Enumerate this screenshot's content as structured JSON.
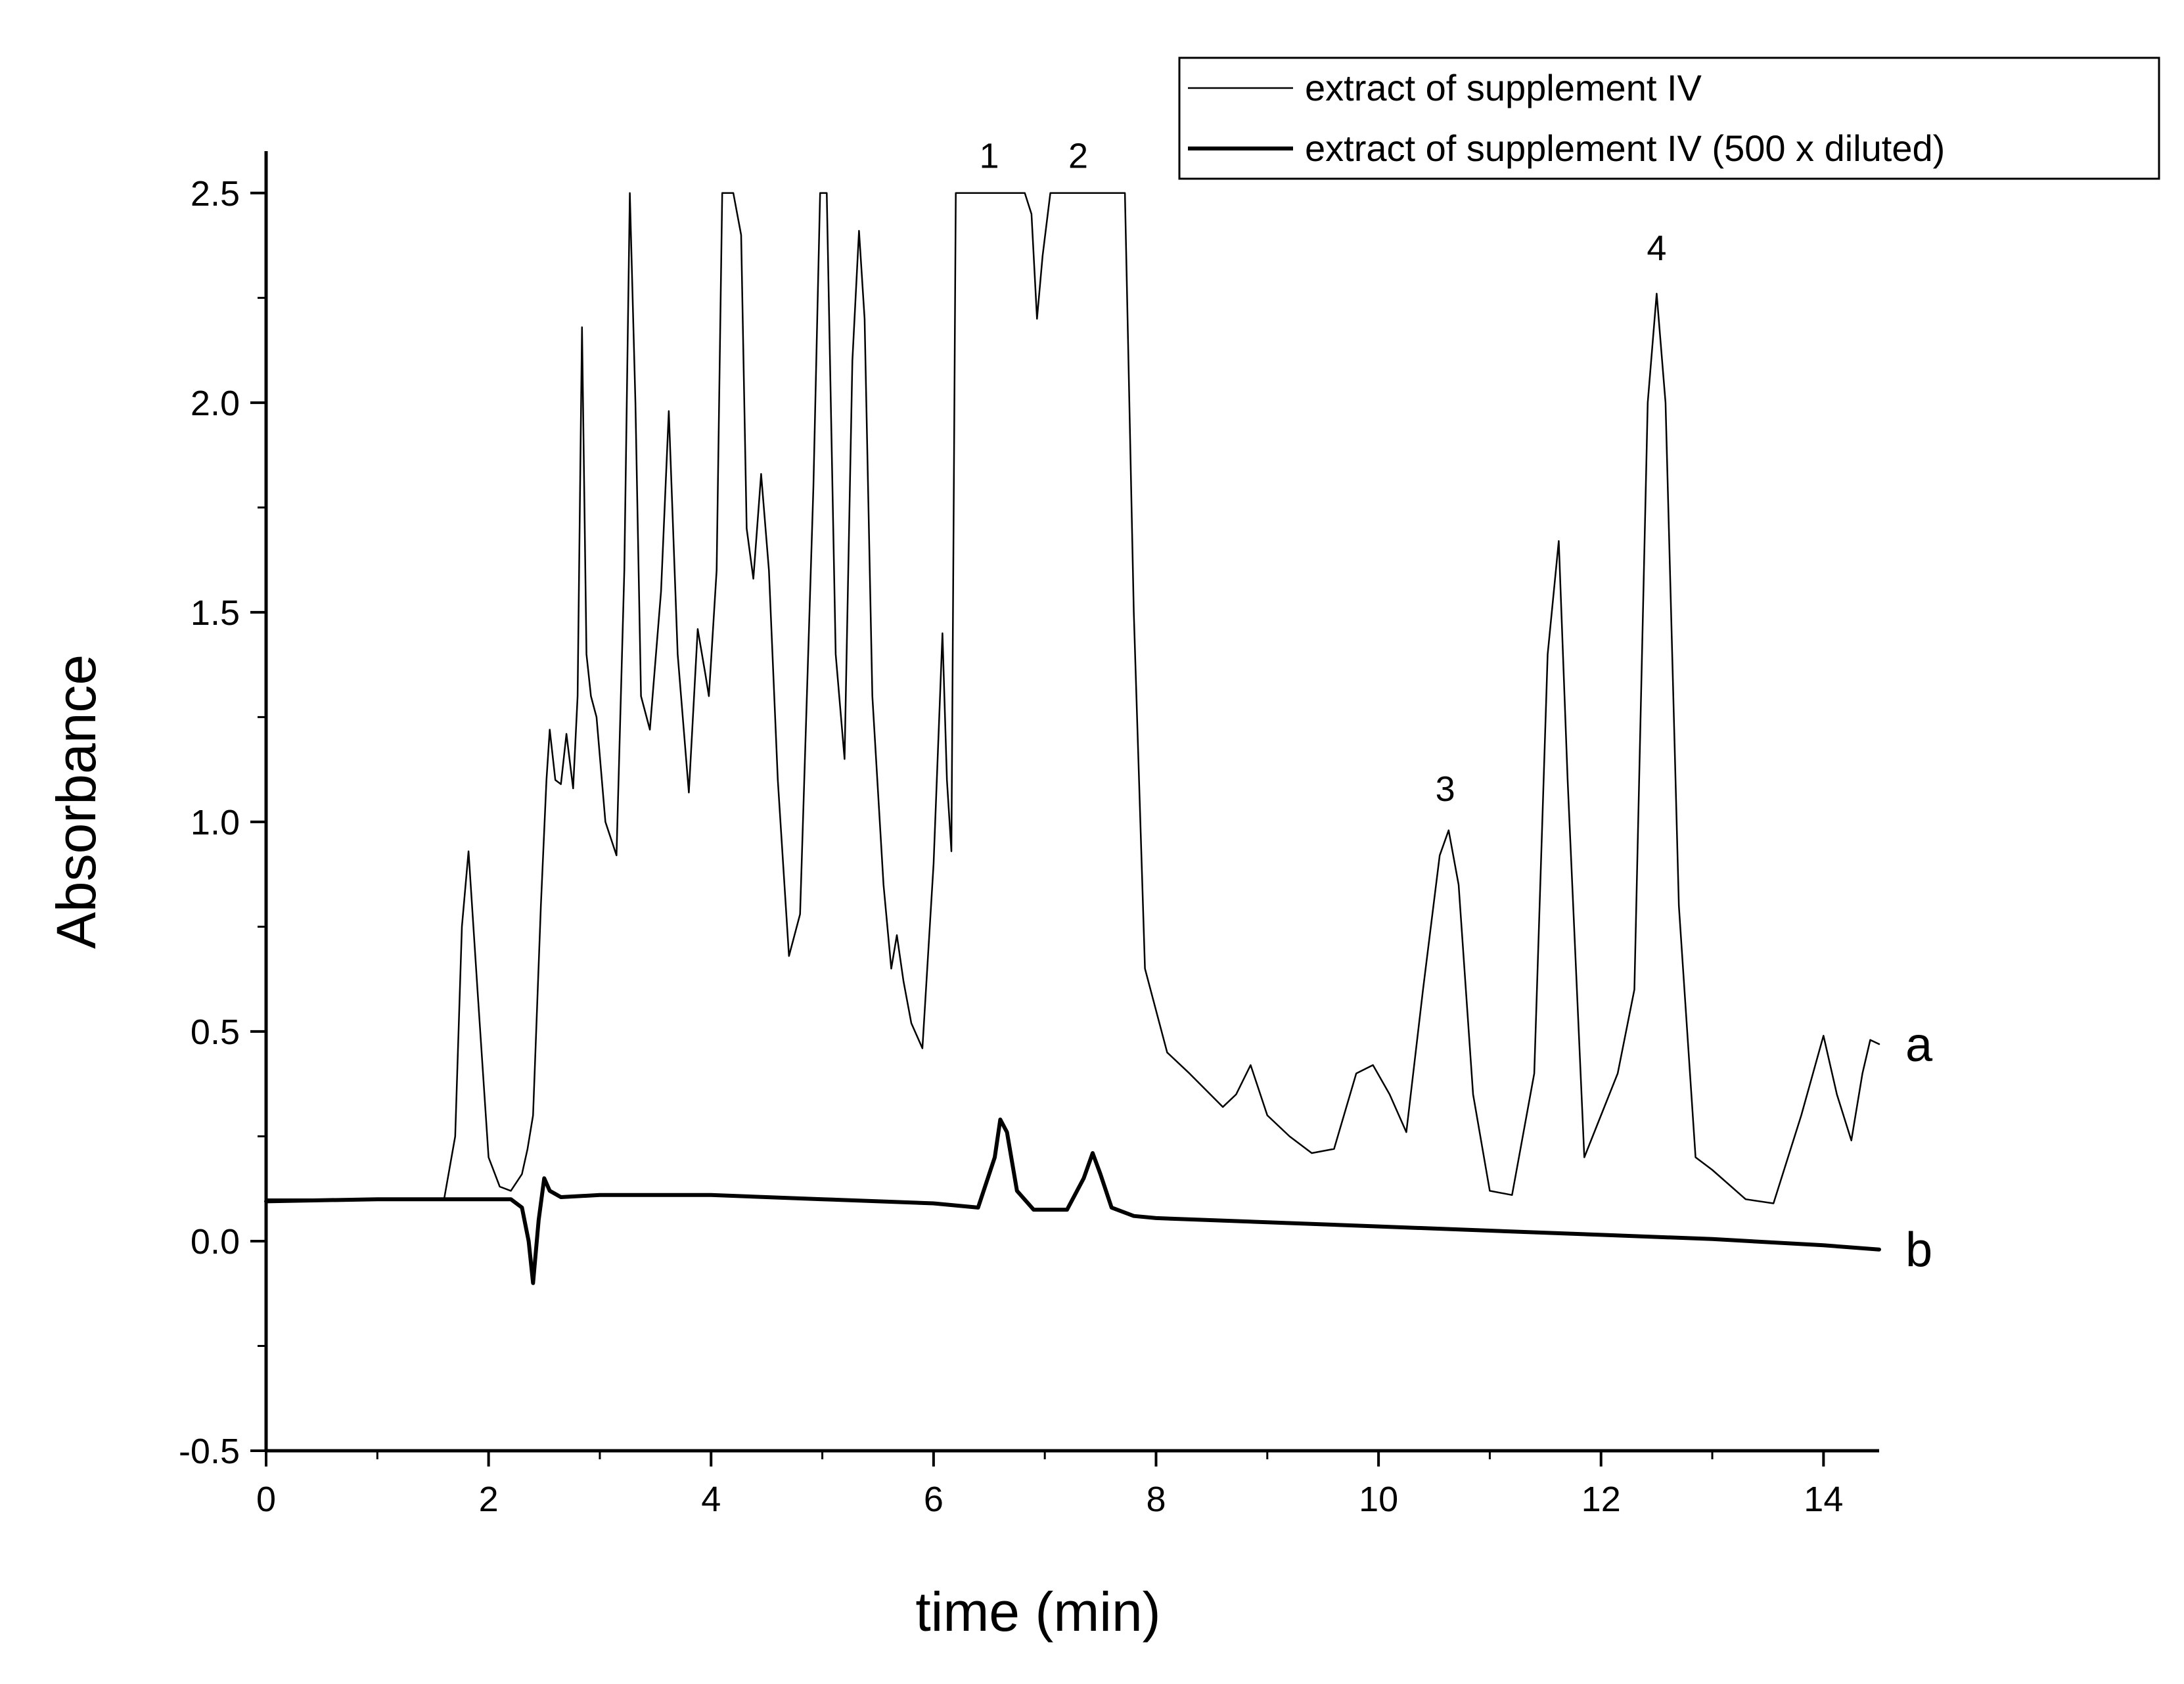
{
  "chart_data": {
    "type": "line",
    "xlabel": "time (min)",
    "ylabel": "Absorbance",
    "xlim": [
      0,
      14.5
    ],
    "ylim": [
      -0.5,
      2.6
    ],
    "xticks": [
      0,
      2,
      4,
      6,
      8,
      10,
      12,
      14
    ],
    "xtick_labels": [
      "0",
      "2",
      "4",
      "6",
      "8",
      "10",
      "12",
      "14"
    ],
    "yticks": [
      -0.5,
      0.0,
      0.5,
      1.0,
      1.5,
      2.0,
      2.5
    ],
    "ytick_labels": [
      "-0.5",
      "0.0",
      "0.5",
      "1.0",
      "1.5",
      "2.0",
      "2.5"
    ],
    "legend": {
      "position": "top-right",
      "entries": [
        {
          "label": "extract of supplement IV",
          "series": "a"
        },
        {
          "label": "extract of supplement IV (500 x diluted)",
          "series": "b"
        }
      ]
    },
    "series": [
      {
        "name": "extract of supplement IV",
        "trace_label": "a",
        "line_weight": "thin",
        "x": [
          0,
          1.6,
          1.7,
          1.76,
          1.82,
          1.9,
          2.0,
          2.1,
          2.2,
          2.3,
          2.35,
          2.4,
          2.47,
          2.52,
          2.55,
          2.6,
          2.65,
          2.7,
          2.76,
          2.8,
          2.84,
          2.88,
          2.92,
          2.97,
          3.05,
          3.15,
          3.22,
          3.27,
          3.32,
          3.37,
          3.45,
          3.55,
          3.62,
          3.7,
          3.8,
          3.88,
          3.95,
          3.98,
          4.05,
          4.1,
          4.13,
          4.2,
          4.27,
          4.32,
          4.38,
          4.45,
          4.52,
          4.6,
          4.7,
          4.8,
          4.92,
          4.98,
          5.04,
          5.12,
          5.2,
          5.27,
          5.33,
          5.38,
          5.45,
          5.55,
          5.62,
          5.67,
          5.73,
          5.8,
          5.9,
          6.0,
          6.08,
          6.12,
          6.16,
          6.2,
          6.3,
          6.82,
          6.88,
          6.93,
          6.98,
          7.05,
          7.1,
          7.65,
          7.72,
          7.8,
          7.9,
          8.1,
          8.3,
          8.6,
          8.72,
          8.85,
          9.0,
          9.2,
          9.4,
          9.6,
          9.8,
          9.95,
          10.1,
          10.25,
          10.4,
          10.55,
          10.63,
          10.72,
          10.85,
          11.0,
          11.2,
          11.4,
          11.52,
          11.62,
          11.7,
          11.85,
          12.0,
          12.15,
          12.3,
          12.42,
          12.5,
          12.58,
          12.7,
          12.85,
          13.0,
          13.3,
          13.55,
          13.8,
          14.0,
          14.12,
          14.25,
          14.35,
          14.42,
          14.5
        ],
        "y": [
          0.1,
          0.1,
          0.25,
          0.75,
          0.93,
          0.6,
          0.2,
          0.13,
          0.12,
          0.16,
          0.22,
          0.3,
          0.8,
          1.1,
          1.22,
          1.1,
          1.09,
          1.21,
          1.08,
          1.3,
          2.18,
          1.4,
          1.3,
          1.25,
          1.0,
          0.92,
          1.6,
          2.5,
          2.0,
          1.3,
          1.22,
          1.55,
          1.98,
          1.4,
          1.07,
          1.46,
          1.35,
          1.3,
          1.6,
          2.5,
          2.5,
          2.5,
          2.4,
          1.7,
          1.58,
          1.83,
          1.6,
          1.1,
          0.68,
          0.78,
          1.8,
          2.5,
          2.5,
          1.4,
          1.15,
          2.1,
          2.41,
          2.2,
          1.3,
          0.85,
          0.65,
          0.73,
          0.62,
          0.52,
          0.46,
          0.9,
          1.45,
          1.1,
          0.93,
          2.5,
          2.5,
          2.5,
          2.45,
          2.2,
          2.35,
          2.5,
          2.5,
          2.5,
          2.5,
          1.5,
          0.65,
          0.45,
          0.4,
          0.32,
          0.35,
          0.42,
          0.3,
          0.25,
          0.21,
          0.22,
          0.4,
          0.42,
          0.35,
          0.26,
          0.6,
          0.92,
          0.98,
          0.85,
          0.35,
          0.12,
          0.11,
          0.4,
          1.4,
          1.67,
          1.1,
          0.2,
          0.3,
          0.4,
          0.6,
          2.0,
          2.26,
          2.0,
          0.8,
          0.2,
          0.17,
          0.1,
          0.09,
          0.3,
          0.49,
          0.35,
          0.24,
          0.4,
          0.48,
          0.47
        ]
      },
      {
        "name": "extract of supplement IV (500 x diluted)",
        "trace_label": "b",
        "line_weight": "thick",
        "x": [
          0,
          1.0,
          2.0,
          2.2,
          2.3,
          2.36,
          2.4,
          2.45,
          2.5,
          2.55,
          2.65,
          3.0,
          4.0,
          5.0,
          6.0,
          6.4,
          6.55,
          6.6,
          6.66,
          6.75,
          6.9,
          7.2,
          7.35,
          7.43,
          7.5,
          7.6,
          7.8,
          8.0,
          10.0,
          12.0,
          13.0,
          14.0,
          14.5
        ],
        "y": [
          0.095,
          0.1,
          0.1,
          0.1,
          0.08,
          0.0,
          -0.1,
          0.05,
          0.15,
          0.12,
          0.105,
          0.11,
          0.11,
          0.1,
          0.09,
          0.08,
          0.2,
          0.29,
          0.26,
          0.12,
          0.075,
          0.075,
          0.15,
          0.21,
          0.16,
          0.08,
          0.06,
          0.055,
          0.035,
          0.015,
          0.005,
          -0.01,
          -0.02
        ]
      }
    ],
    "annotations": [
      {
        "text": "1",
        "x": 6.5,
        "y": 2.56
      },
      {
        "text": "2",
        "x": 7.3,
        "y": 2.56
      },
      {
        "text": "3",
        "x": 10.6,
        "y": 1.05
      },
      {
        "text": "4",
        "x": 12.5,
        "y": 2.34
      }
    ]
  }
}
